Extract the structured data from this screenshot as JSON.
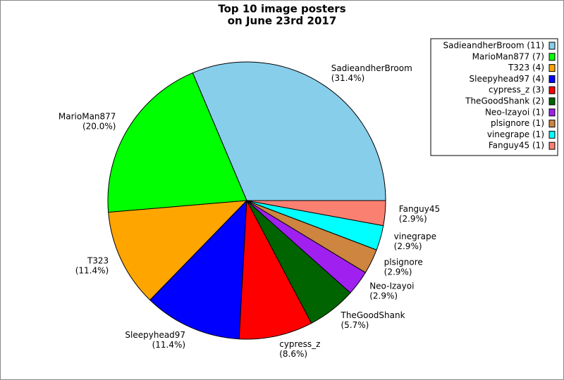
{
  "chart_data": {
    "type": "pie",
    "title": [
      "Top 10 image posters",
      "on June 23rd 2017"
    ],
    "categories": [
      "SadieandherBroom",
      "MarioMan877",
      "T323",
      "Sleepyhead97",
      "cypress_z",
      "TheGoodShank",
      "Neo-Izayoi",
      "plsignore",
      "vinegrape",
      "Fanguy45"
    ],
    "values": [
      31.4,
      20.0,
      11.4,
      11.4,
      8.6,
      5.7,
      2.9,
      2.9,
      2.9,
      2.9
    ],
    "value_labels": [
      "(31.4%)",
      "(20.0%)",
      "(11.4%)",
      "(11.4%)",
      "(8.6%)",
      "(5.7%)",
      "(2.9%)",
      "(2.9%)",
      "(2.9%)",
      "(2.9%)"
    ],
    "colors": [
      "#87ceeb",
      "#00ff00",
      "#ffa500",
      "#0000ff",
      "#ff0000",
      "#006400",
      "#a020f0",
      "#cd853f",
      "#00ffff",
      "#fa8072"
    ],
    "legend_labels": [
      "SadieandherBroom (11)",
      "MarioMan877 (7)",
      "T323 (4)",
      "Sleepyhead97 (4)",
      "cypress_z (3)",
      "TheGoodShank (2)",
      "Neo-Izayoi (1)",
      "plsignore (1)",
      "vinegrape (1)",
      "Fanguy45 (1)"
    ],
    "legend_position": "upper right"
  }
}
